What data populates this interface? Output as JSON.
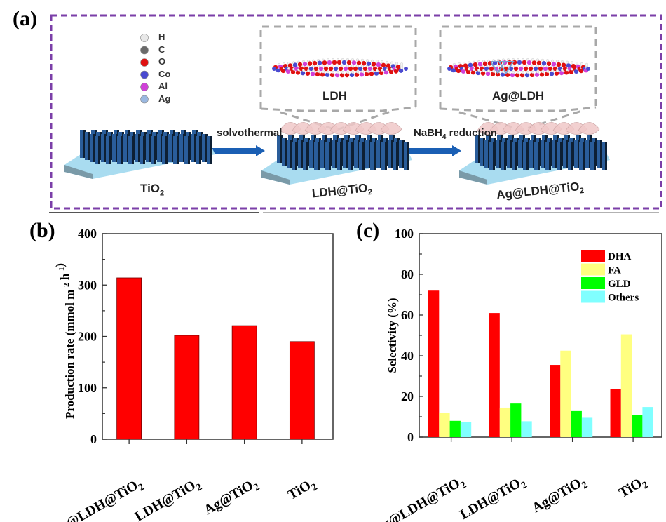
{
  "panel_a": {
    "label": "(a)",
    "legend": [
      {
        "symbol": "H",
        "color": "#e8e8e8"
      },
      {
        "symbol": "C",
        "color": "#6a6a6a"
      },
      {
        "symbol": "O",
        "color": "#e01010"
      },
      {
        "symbol": "Co",
        "color": "#4a4ad0"
      },
      {
        "symbol": "Al",
        "color": "#d040d8"
      },
      {
        "symbol": "Ag",
        "color": "#9ab8e0"
      }
    ],
    "step1_label": "solvothermal",
    "step2_label_main": "NaBH",
    "step2_label_sub": "4",
    "step2_label_rest": " reduction",
    "inset1_label": "LDH",
    "inset2_label": "Ag@LDH",
    "stage1_main": "TiO",
    "stage1_sub": "2",
    "stage2_main": "LDH@TiO",
    "stage2_sub": "2",
    "stage3_main": "Ag@LDH@TiO",
    "stage3_sub": "2",
    "colors": {
      "frame": "#7b3fa8",
      "inset": "#a8a8a8",
      "arrow": "#1a5fb4",
      "rod": "#2a5d9a",
      "substrate": "#a9dcf0",
      "ldh": "#f0c8c8"
    }
  },
  "chart_data": [
    {
      "panel_label": "(b)",
      "type": "bar",
      "title": "",
      "xlabel": "",
      "ylabel_main": "Production rate (mmol m",
      "ylabel_sup1": "-2",
      "ylabel_mid": " h",
      "ylabel_sup2": "-1",
      "ylabel_end": ")",
      "categories": [
        {
          "main": "Ag@LDH@TiO",
          "sub": "2"
        },
        {
          "main": "LDH@TiO",
          "sub": "2"
        },
        {
          "main": "Ag@TiO",
          "sub": "2"
        },
        {
          "main": "TiO",
          "sub": "2"
        }
      ],
      "values": [
        314,
        202,
        221,
        190
      ],
      "ylim": [
        0,
        400
      ],
      "yticks": [
        "0",
        "100",
        "200",
        "300",
        "400"
      ],
      "bar_color": "#ff0000",
      "grid": false
    },
    {
      "panel_label": "(c)",
      "type": "bar",
      "title": "",
      "xlabel": "",
      "ylabel": "Selectivity (%)",
      "categories": [
        {
          "main": "Ag@LDH@TiO",
          "sub": "2"
        },
        {
          "main": "LDH@TiO",
          "sub": "2"
        },
        {
          "main": "Ag@TiO",
          "sub": "2"
        },
        {
          "main": "TiO",
          "sub": "2"
        }
      ],
      "series": [
        {
          "name": "DHA",
          "color": "#ff0000",
          "values": [
            72,
            61,
            35.5,
            23.5
          ]
        },
        {
          "name": "FA",
          "color": "#ffff80",
          "values": [
            12,
            14.5,
            42.5,
            50.5
          ]
        },
        {
          "name": "GLD",
          "color": "#00ff00",
          "values": [
            8,
            16.5,
            12.8,
            11
          ]
        },
        {
          "name": "Others",
          "color": "#80ffff",
          "values": [
            7.5,
            7.8,
            9.5,
            14.8
          ]
        }
      ],
      "ylim": [
        0,
        100
      ],
      "yticks": [
        "0",
        "20",
        "40",
        "60",
        "80",
        "100"
      ],
      "legend_position": "top-right",
      "grid": false
    }
  ]
}
